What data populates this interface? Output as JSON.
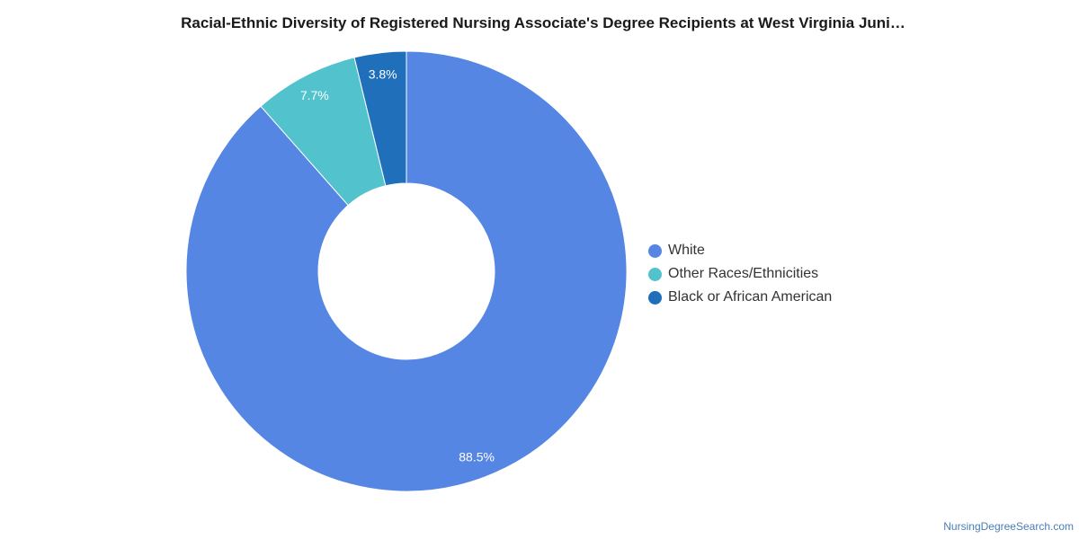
{
  "chart_data": {
    "type": "pie",
    "donut": true,
    "title": "Racial-Ethnic Diversity of Registered Nursing Associate's Degree Recipients at West Virginia Juni…",
    "slices": [
      {
        "label": "White",
        "value": 88.5,
        "display": "88.5%",
        "color": "#5586e3"
      },
      {
        "label": "Other Races/Ethnicities",
        "value": 7.7,
        "display": "7.7%",
        "color": "#52c3cd"
      },
      {
        "label": "Black or African American",
        "value": 3.8,
        "display": "3.8%",
        "color": "#1f6fbb"
      }
    ],
    "legend_position": "right"
  },
  "footer": {
    "credit": "NursingDegreeSearch.com"
  }
}
